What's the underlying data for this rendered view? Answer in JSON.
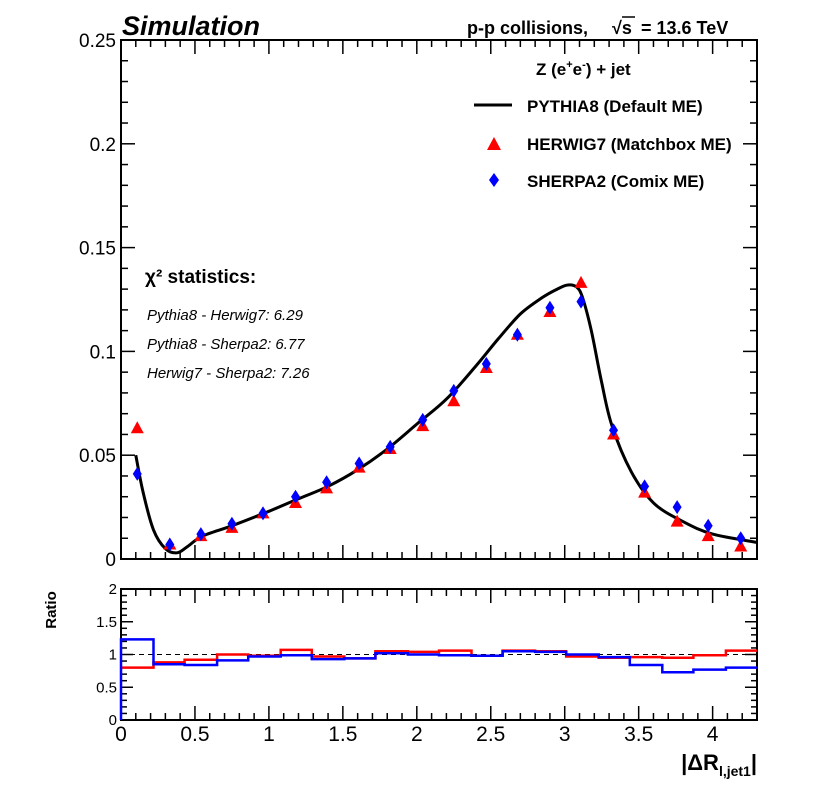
{
  "header": {
    "label": "Simulation",
    "energy_text": "p-p collisions,",
    "energy_sqrt": "√s",
    "energy_value": "= 13.6 TeV"
  },
  "process": {
    "prefix": "Z (e",
    "sup_plus": "+",
    "mid": "e",
    "sup_minus": "-",
    "suffix": ") + jet"
  },
  "stats": {
    "title": "χ² statistics:",
    "lines": [
      "Pythia8 - Herwig7: 6.29",
      "Pythia8 - Sherpa2: 6.77",
      "Herwig7 - Sherpa2: 7.26"
    ]
  },
  "colors": {
    "pythia": "#000000",
    "herwig": "#ff0000",
    "sherpa": "#0000ff",
    "reference_line": "#000000"
  },
  "chart_data": [
    {
      "type": "line",
      "panel": "main",
      "ylim": [
        0,
        0.25
      ],
      "xlim": [
        0,
        4.3
      ],
      "yticks": [
        "0",
        "0.05",
        "0.1",
        "0.15",
        "0.2",
        "0.25"
      ],
      "legend_position": "top-right",
      "legend": [
        {
          "label": "PYTHIA8 (Default ME)",
          "marker": "line",
          "color": "#000000"
        },
        {
          "label": "HERWIG7 (Matchbox ME)",
          "marker": "triangle",
          "color": "#ff0000"
        },
        {
          "label": "SHERPA2 (Comix ME)",
          "marker": "diamond",
          "color": "#0000ff"
        }
      ],
      "series": [
        {
          "name": "PYTHIA8 (Default ME)",
          "style": "line",
          "x": [
            0.1,
            0.15,
            0.22,
            0.3,
            0.38,
            0.45,
            0.55,
            0.75,
            1.0,
            1.2,
            1.4,
            1.6,
            1.8,
            2.0,
            2.2,
            2.4,
            2.55,
            2.7,
            2.85,
            2.95,
            3.02,
            3.08,
            3.12,
            3.18,
            3.25,
            3.32,
            3.45,
            3.6,
            3.8,
            4.0,
            4.3
          ],
          "y": [
            0.05,
            0.032,
            0.014,
            0.005,
            0.003,
            0.006,
            0.011,
            0.016,
            0.023,
            0.029,
            0.035,
            0.043,
            0.053,
            0.065,
            0.077,
            0.093,
            0.106,
            0.118,
            0.126,
            0.13,
            0.132,
            0.131,
            0.126,
            0.11,
            0.085,
            0.064,
            0.042,
            0.027,
            0.018,
            0.012,
            0.008
          ]
        },
        {
          "name": "HERWIG7 (Matchbox ME)",
          "style": "triangle",
          "x": [
            0.11,
            0.33,
            0.54,
            0.75,
            0.96,
            1.18,
            1.39,
            1.61,
            1.82,
            2.04,
            2.25,
            2.47,
            2.68,
            2.9,
            3.11,
            3.33,
            3.54,
            3.76,
            3.97,
            4.19
          ],
          "y": [
            0.063,
            0.007,
            0.011,
            0.015,
            0.022,
            0.027,
            0.034,
            0.044,
            0.053,
            0.064,
            0.076,
            0.092,
            0.108,
            0.119,
            0.133,
            0.06,
            0.032,
            0.018,
            0.011,
            0.006
          ]
        },
        {
          "name": "SHERPA2 (Comix ME)",
          "style": "diamond",
          "x": [
            0.11,
            0.33,
            0.54,
            0.75,
            0.96,
            1.18,
            1.39,
            1.61,
            1.82,
            2.04,
            2.25,
            2.47,
            2.68,
            2.9,
            3.11,
            3.33,
            3.54,
            3.76,
            3.97,
            4.19
          ],
          "y": [
            0.041,
            0.007,
            0.012,
            0.017,
            0.022,
            0.03,
            0.037,
            0.046,
            0.054,
            0.067,
            0.081,
            0.094,
            0.108,
            0.121,
            0.124,
            0.062,
            0.035,
            0.025,
            0.016,
            0.01
          ]
        }
      ]
    },
    {
      "type": "line",
      "panel": "ratio",
      "ylabel": "Ratio",
      "xlabel": "|ΔR",
      "xlabel_subscript": "l,jet1",
      "xlabel_suffix": "|",
      "ylim": [
        0,
        2
      ],
      "xlim": [
        0,
        4.3
      ],
      "yticks": [
        "0",
        "0.5",
        "1",
        "1.5",
        "2"
      ],
      "xticks": [
        "0",
        "0.5",
        "1",
        "1.5",
        "2",
        "2.5",
        "3",
        "3.5",
        "4"
      ],
      "reference": 1,
      "bin_edges": [
        0,
        0.22,
        0.43,
        0.65,
        0.86,
        1.08,
        1.29,
        1.51,
        1.72,
        1.94,
        2.15,
        2.37,
        2.58,
        2.8,
        3.01,
        3.23,
        3.44,
        3.66,
        3.87,
        4.09,
        4.3
      ],
      "series": [
        {
          "name": "HERWIG7 / PYTHIA8",
          "style": "step",
          "values": [
            0.8,
            0.88,
            0.92,
            1.0,
            0.98,
            1.07,
            0.97,
            0.94,
            1.05,
            1.04,
            1.06,
            0.98,
            1.06,
            1.05,
            0.97,
            0.95,
            0.96,
            0.95,
            0.99,
            1.06
          ]
        },
        {
          "name": "SHERPA2 / PYTHIA8",
          "style": "step",
          "values": [
            1.23,
            0.85,
            0.84,
            0.91,
            0.97,
            0.99,
            0.93,
            0.94,
            1.02,
            1.0,
            0.99,
            0.98,
            1.05,
            1.04,
            1.0,
            0.96,
            0.84,
            0.73,
            0.77,
            0.8
          ]
        }
      ]
    }
  ]
}
